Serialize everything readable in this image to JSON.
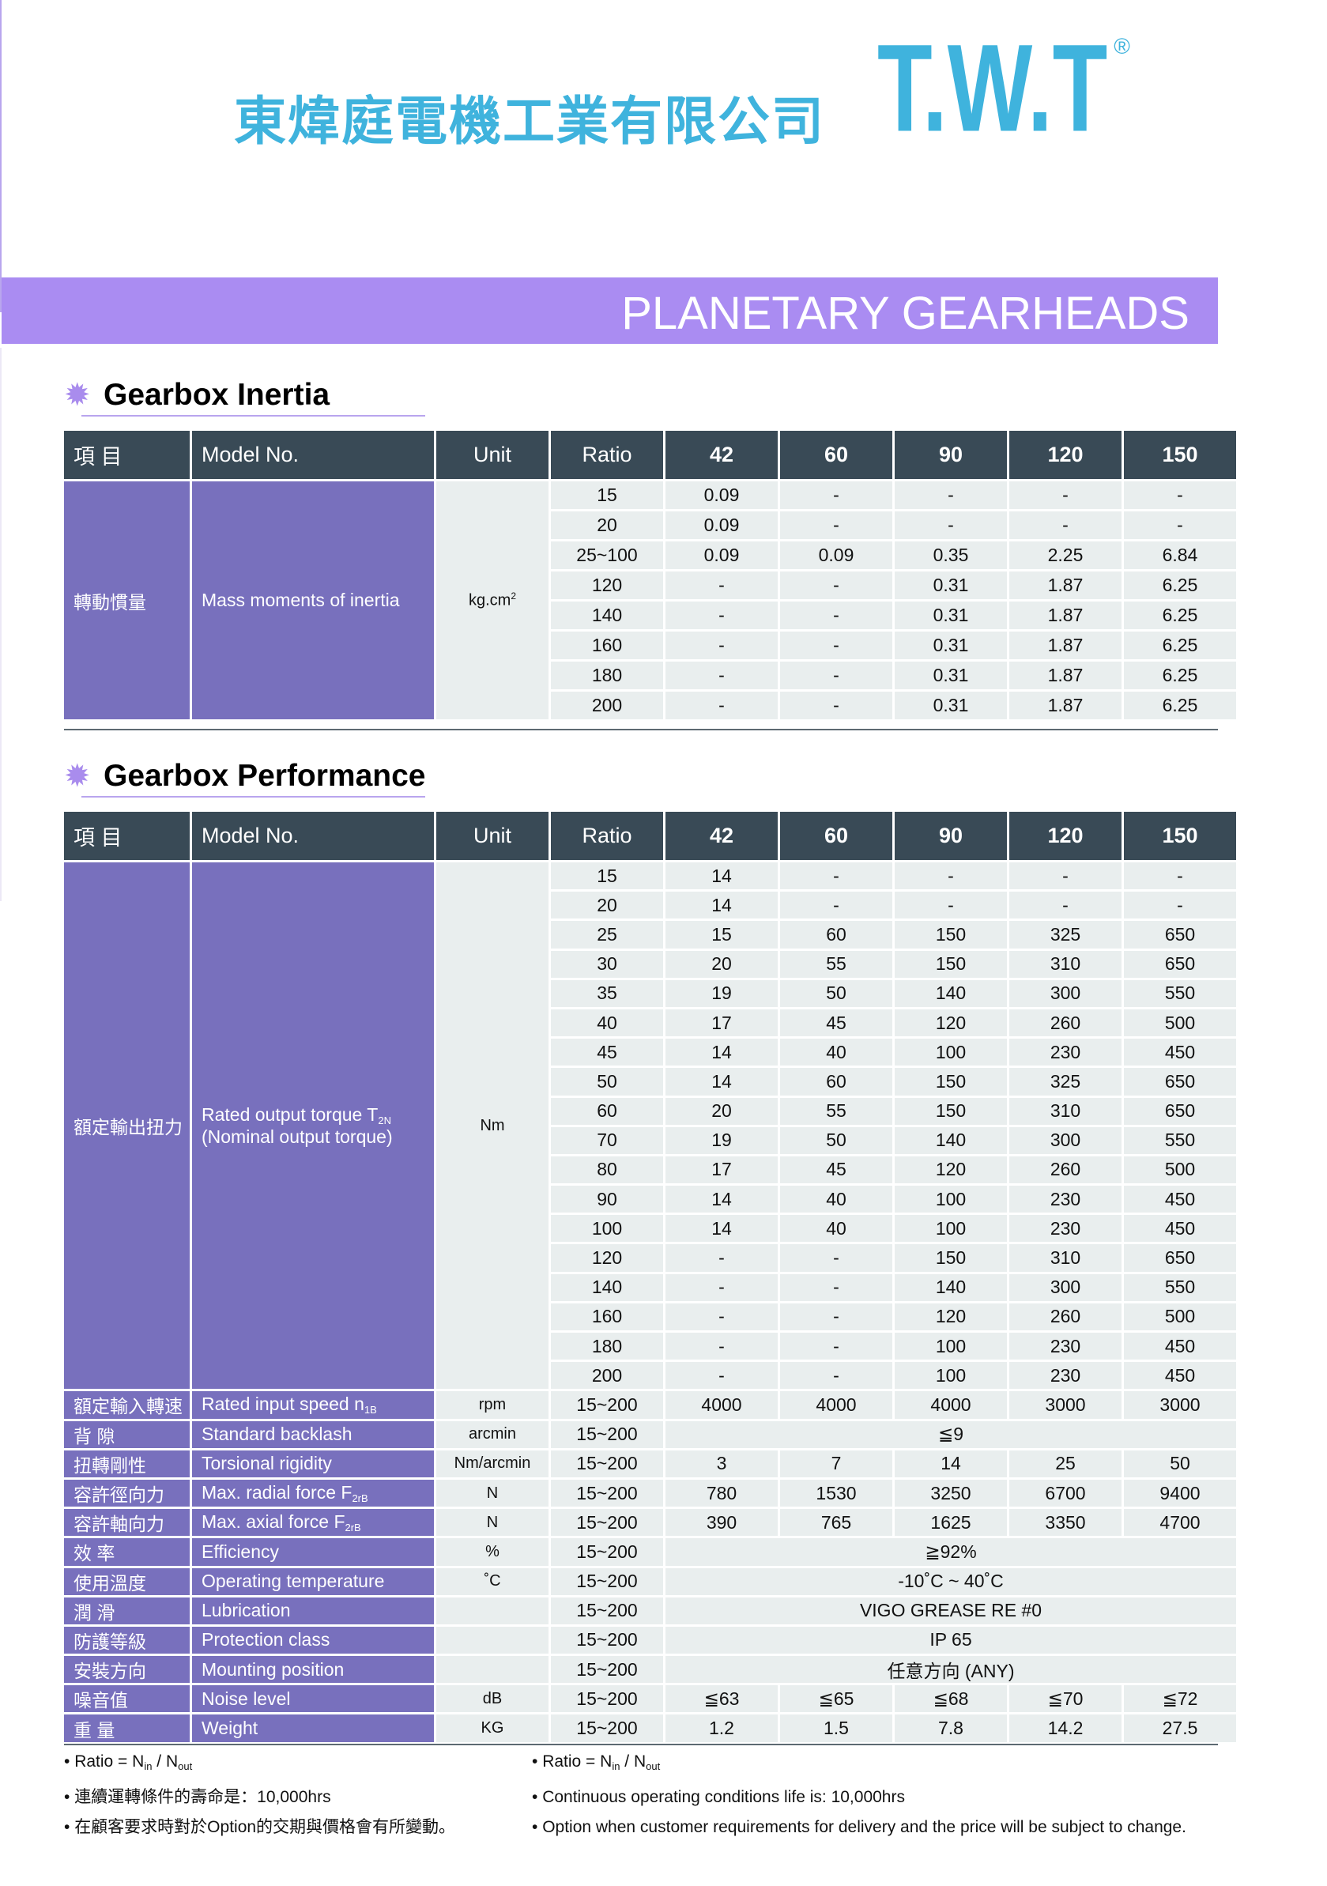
{
  "header": {
    "company_name": "東煒庭電機工業有限公司",
    "logo_text": "T.W.T",
    "registered_mark": "®",
    "banner_title": "PLANETARY GEARHEADS",
    "brand_color": "#3fb3dd",
    "banner_color": "#aa8cf2"
  },
  "inertia": {
    "title": "Gearbox Inertia",
    "header": {
      "item": "項 目",
      "model": "Model No.",
      "unit": "Unit",
      "ratio": "Ratio",
      "sizes": [
        "42",
        "60",
        "90",
        "120",
        "150"
      ]
    },
    "label_zh": "轉動慣量",
    "label_en": "Mass moments of inertia",
    "unit": "kg.cm",
    "unit_sup": "2",
    "rows": [
      {
        "ratio": "15",
        "values": [
          "0.09",
          "-",
          "-",
          "-",
          "-"
        ]
      },
      {
        "ratio": "20",
        "values": [
          "0.09",
          "-",
          "-",
          "-",
          "-"
        ]
      },
      {
        "ratio": "25~100",
        "values": [
          "0.09",
          "0.09",
          "0.35",
          "2.25",
          "6.84"
        ]
      },
      {
        "ratio": "120",
        "values": [
          "-",
          "-",
          "0.31",
          "1.87",
          "6.25"
        ]
      },
      {
        "ratio": "140",
        "values": [
          "-",
          "-",
          "0.31",
          "1.87",
          "6.25"
        ]
      },
      {
        "ratio": "160",
        "values": [
          "-",
          "-",
          "0.31",
          "1.87",
          "6.25"
        ]
      },
      {
        "ratio": "180",
        "values": [
          "-",
          "-",
          "0.31",
          "1.87",
          "6.25"
        ]
      },
      {
        "ratio": "200",
        "values": [
          "-",
          "-",
          "0.31",
          "1.87",
          "6.25"
        ]
      }
    ]
  },
  "performance": {
    "title": "Gearbox Performance",
    "header": {
      "item": "項 目",
      "model": "Model No.",
      "unit": "Unit",
      "ratio": "Ratio",
      "sizes": [
        "42",
        "60",
        "90",
        "120",
        "150"
      ]
    },
    "torque": {
      "label_zh": "額定輸出扭力",
      "label_en": "Rated output torque T",
      "label_en_sub": "2N",
      "label_en2": "(Nominal output torque)",
      "unit": "Nm",
      "rows": [
        {
          "ratio": "15",
          "values": [
            "14",
            "-",
            "-",
            "-",
            "-"
          ]
        },
        {
          "ratio": "20",
          "values": [
            "14",
            "-",
            "-",
            "-",
            "-"
          ]
        },
        {
          "ratio": "25",
          "values": [
            "15",
            "60",
            "150",
            "325",
            "650"
          ]
        },
        {
          "ratio": "30",
          "values": [
            "20",
            "55",
            "150",
            "310",
            "650"
          ]
        },
        {
          "ratio": "35",
          "values": [
            "19",
            "50",
            "140",
            "300",
            "550"
          ]
        },
        {
          "ratio": "40",
          "values": [
            "17",
            "45",
            "120",
            "260",
            "500"
          ]
        },
        {
          "ratio": "45",
          "values": [
            "14",
            "40",
            "100",
            "230",
            "450"
          ]
        },
        {
          "ratio": "50",
          "values": [
            "14",
            "60",
            "150",
            "325",
            "650"
          ]
        },
        {
          "ratio": "60",
          "values": [
            "20",
            "55",
            "150",
            "310",
            "650"
          ]
        },
        {
          "ratio": "70",
          "values": [
            "19",
            "50",
            "140",
            "300",
            "550"
          ]
        },
        {
          "ratio": "80",
          "values": [
            "17",
            "45",
            "120",
            "260",
            "500"
          ]
        },
        {
          "ratio": "90",
          "values": [
            "14",
            "40",
            "100",
            "230",
            "450"
          ]
        },
        {
          "ratio": "100",
          "values": [
            "14",
            "40",
            "100",
            "230",
            "450"
          ]
        },
        {
          "ratio": "120",
          "values": [
            "-",
            "-",
            "150",
            "310",
            "650"
          ]
        },
        {
          "ratio": "140",
          "values": [
            "-",
            "-",
            "140",
            "300",
            "550"
          ]
        },
        {
          "ratio": "160",
          "values": [
            "-",
            "-",
            "120",
            "260",
            "500"
          ]
        },
        {
          "ratio": "180",
          "values": [
            "-",
            "-",
            "100",
            "230",
            "450"
          ]
        },
        {
          "ratio": "200",
          "values": [
            "-",
            "-",
            "100",
            "230",
            "450"
          ]
        }
      ]
    },
    "specs": [
      {
        "zh": "額定輸入轉速",
        "en": "Rated input speed n",
        "sub": "1B",
        "unit": "rpm",
        "ratio": "15~200",
        "values": [
          "4000",
          "4000",
          "4000",
          "3000",
          "3000"
        ]
      },
      {
        "zh": "背 隙",
        "en": "Standard backlash",
        "unit": "arcmin",
        "ratio": "15~200",
        "merged": "≦9"
      },
      {
        "zh": "扭轉剛性",
        "en": "Torsional rigidity",
        "unit": "Nm/arcmin",
        "ratio": "15~200",
        "values": [
          "3",
          "7",
          "14",
          "25",
          "50"
        ]
      },
      {
        "zh": "容許徑向力",
        "en": "Max. radial force F",
        "sub": "2rB",
        "unit": "N",
        "ratio": "15~200",
        "values": [
          "780",
          "1530",
          "3250",
          "6700",
          "9400"
        ]
      },
      {
        "zh": "容許軸向力",
        "en": "Max. axial force F",
        "sub": "2rB",
        "unit": "N",
        "ratio": "15~200",
        "values": [
          "390",
          "765",
          "1625",
          "3350",
          "4700"
        ]
      },
      {
        "zh": "效 率",
        "en": "Efficiency",
        "unit": "%",
        "ratio": "15~200",
        "merged": "≧92%"
      },
      {
        "zh": "使用溫度",
        "en": "Operating temperature",
        "unit": "˚C",
        "ratio": "15~200",
        "merged": "-10˚C ~ 40˚C"
      },
      {
        "zh": "潤 滑",
        "en": "Lubrication",
        "unit": "",
        "ratio": "15~200",
        "merged": "VIGO GREASE RE #0"
      },
      {
        "zh": "防護等級",
        "en": "Protection class",
        "unit": "",
        "ratio": "15~200",
        "merged": "IP 65"
      },
      {
        "zh": "安裝方向",
        "en": "Mounting position",
        "unit": "",
        "ratio": "15~200",
        "merged": "任意方向 (ANY)"
      },
      {
        "zh": "噪音值",
        "en": "Noise level",
        "unit": "dB",
        "ratio": "15~200",
        "values": [
          "≦63",
          "≦65",
          "≦68",
          "≦70",
          "≦72"
        ]
      },
      {
        "zh": "重 量",
        "en": "Weight",
        "unit": "KG",
        "ratio": "15~200",
        "values": [
          "1.2",
          "1.5",
          "7.8",
          "14.2",
          "27.5"
        ]
      }
    ]
  },
  "notes": {
    "zh": [
      {
        "text": "Ratio = N",
        "sub1": "in",
        "mid": " / N",
        "sub2": "out"
      },
      {
        "text": "連續運轉條件的壽命是：10,000hrs"
      },
      {
        "text": "在顧客要求時對於Option的交期與價格會有所變動。"
      }
    ],
    "en": [
      {
        "text": "Ratio = N",
        "sub1": "in",
        "mid": " / N",
        "sub2": "out"
      },
      {
        "text": "Continuous operating conditions life is: 10,000hrs"
      },
      {
        "text": "Option when customer requirements for delivery and the price will be subject to change."
      }
    ]
  }
}
